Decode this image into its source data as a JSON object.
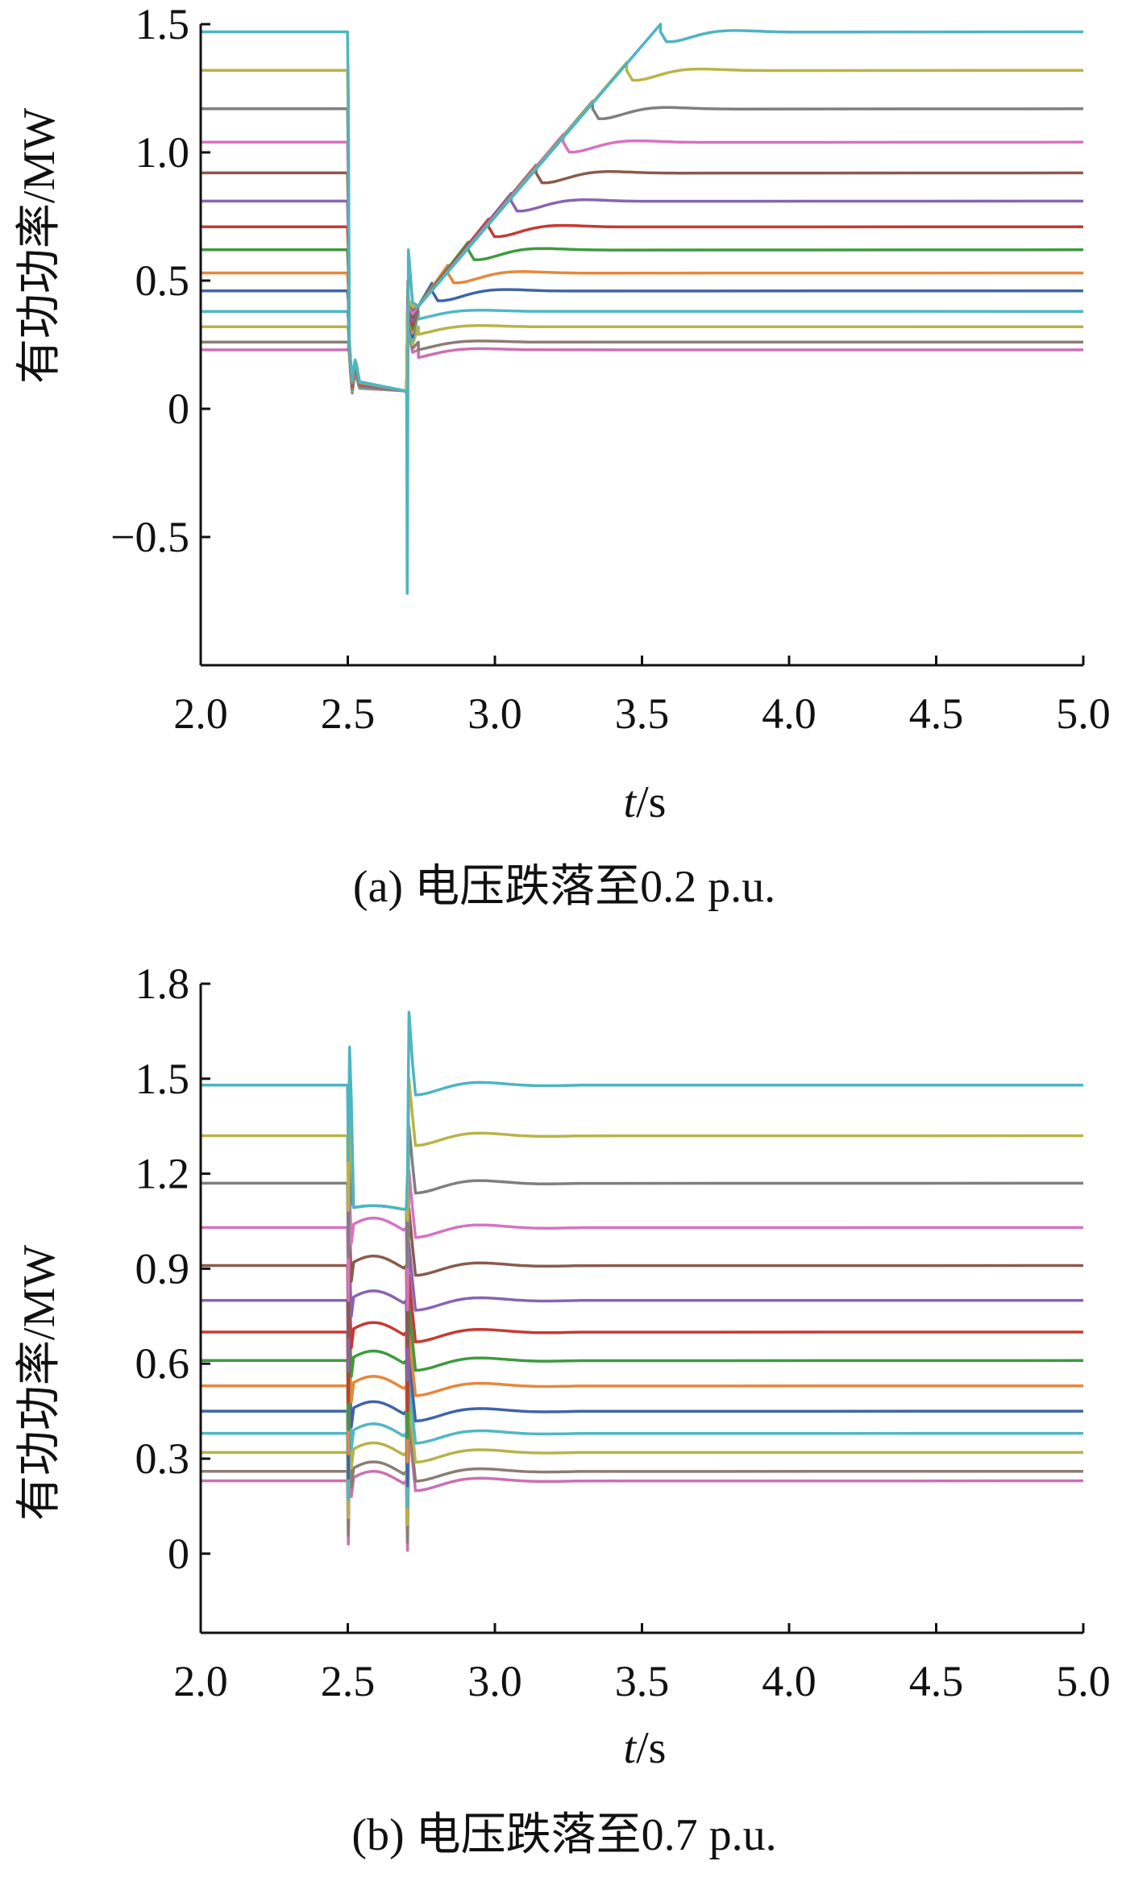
{
  "chart_data": [
    {
      "type": "line",
      "caption": "(a) 电压跌落至0.2 p.u.",
      "xlabel_italic": "t",
      "xlabel_unit": "/s",
      "ylabel": "有功功率/MW",
      "xlim": [
        2.0,
        5.0
      ],
      "ylim": [
        -1.0,
        1.5
      ],
      "xticks": [
        "2.0",
        "2.5",
        "3.0",
        "3.5",
        "4.0",
        "4.5",
        "5.0"
      ],
      "yticks": [
        "1.5",
        "1.0",
        "0.5",
        "0",
        "−0.5"
      ],
      "ytick_values": [
        1.5,
        1.0,
        0.5,
        0,
        -0.5
      ],
      "grid": false,
      "fault_start": 2.5,
      "fault_end": 2.7,
      "ramp": {
        "start": 2.74,
        "start_value": 0.4,
        "rate": 1.3
      },
      "series": [
        {
          "color": "#cc6fb4",
          "steady": 0.23
        },
        {
          "color": "#8b7c74",
          "steady": 0.26
        },
        {
          "color": "#b8b34a",
          "steady": 0.32
        },
        {
          "color": "#4fb8c4",
          "steady": 0.38
        },
        {
          "color": "#3f64a8",
          "steady": 0.46
        },
        {
          "color": "#e8873a",
          "steady": 0.53
        },
        {
          "color": "#3e9a3e",
          "steady": 0.62
        },
        {
          "color": "#c63a32",
          "steady": 0.71
        },
        {
          "color": "#8a63b0",
          "steady": 0.81
        },
        {
          "color": "#8b5a4c",
          "steady": 0.92
        },
        {
          "color": "#d673bf",
          "steady": 1.04
        },
        {
          "color": "#7f7f7f",
          "steady": 1.17
        },
        {
          "color": "#b9b447",
          "steady": 1.32
        },
        {
          "color": "#4cb5c2",
          "steady": 1.47
        }
      ]
    },
    {
      "type": "line",
      "caption": "(b) 电压跌落至0.7 p.u.",
      "xlabel_italic": "t",
      "xlabel_unit": "/s",
      "ylabel": "有功功率/MW",
      "xlim": [
        2.0,
        5.0
      ],
      "ylim": [
        -0.25,
        1.8
      ],
      "xticks": [
        "2.0",
        "2.5",
        "3.0",
        "3.5",
        "4.0",
        "4.5",
        "5.0"
      ],
      "yticks": [
        "1.8",
        "1.5",
        "1.2",
        "0.9",
        "0.6",
        "0.3",
        "0"
      ],
      "ytick_values": [
        1.8,
        1.5,
        1.2,
        0.9,
        0.6,
        0.3,
        0
      ],
      "grid": false,
      "fault_start": 2.5,
      "fault_end": 2.7,
      "series": [
        {
          "color": "#cc6fb4",
          "steady": 0.23
        },
        {
          "color": "#8b7c74",
          "steady": 0.26
        },
        {
          "color": "#b8b34a",
          "steady": 0.32
        },
        {
          "color": "#4fb8c4",
          "steady": 0.38
        },
        {
          "color": "#3f64a8",
          "steady": 0.45
        },
        {
          "color": "#e8873a",
          "steady": 0.53
        },
        {
          "color": "#3e9a3e",
          "steady": 0.61
        },
        {
          "color": "#c63a32",
          "steady": 0.7
        },
        {
          "color": "#8a63b0",
          "steady": 0.8
        },
        {
          "color": "#8b5a4c",
          "steady": 0.91
        },
        {
          "color": "#d673bf",
          "steady": 1.03
        },
        {
          "color": "#7f7f7f",
          "steady": 1.17
        },
        {
          "color": "#b9b447",
          "steady": 1.32
        },
        {
          "color": "#4cb5c2",
          "steady": 1.48
        }
      ]
    }
  ]
}
